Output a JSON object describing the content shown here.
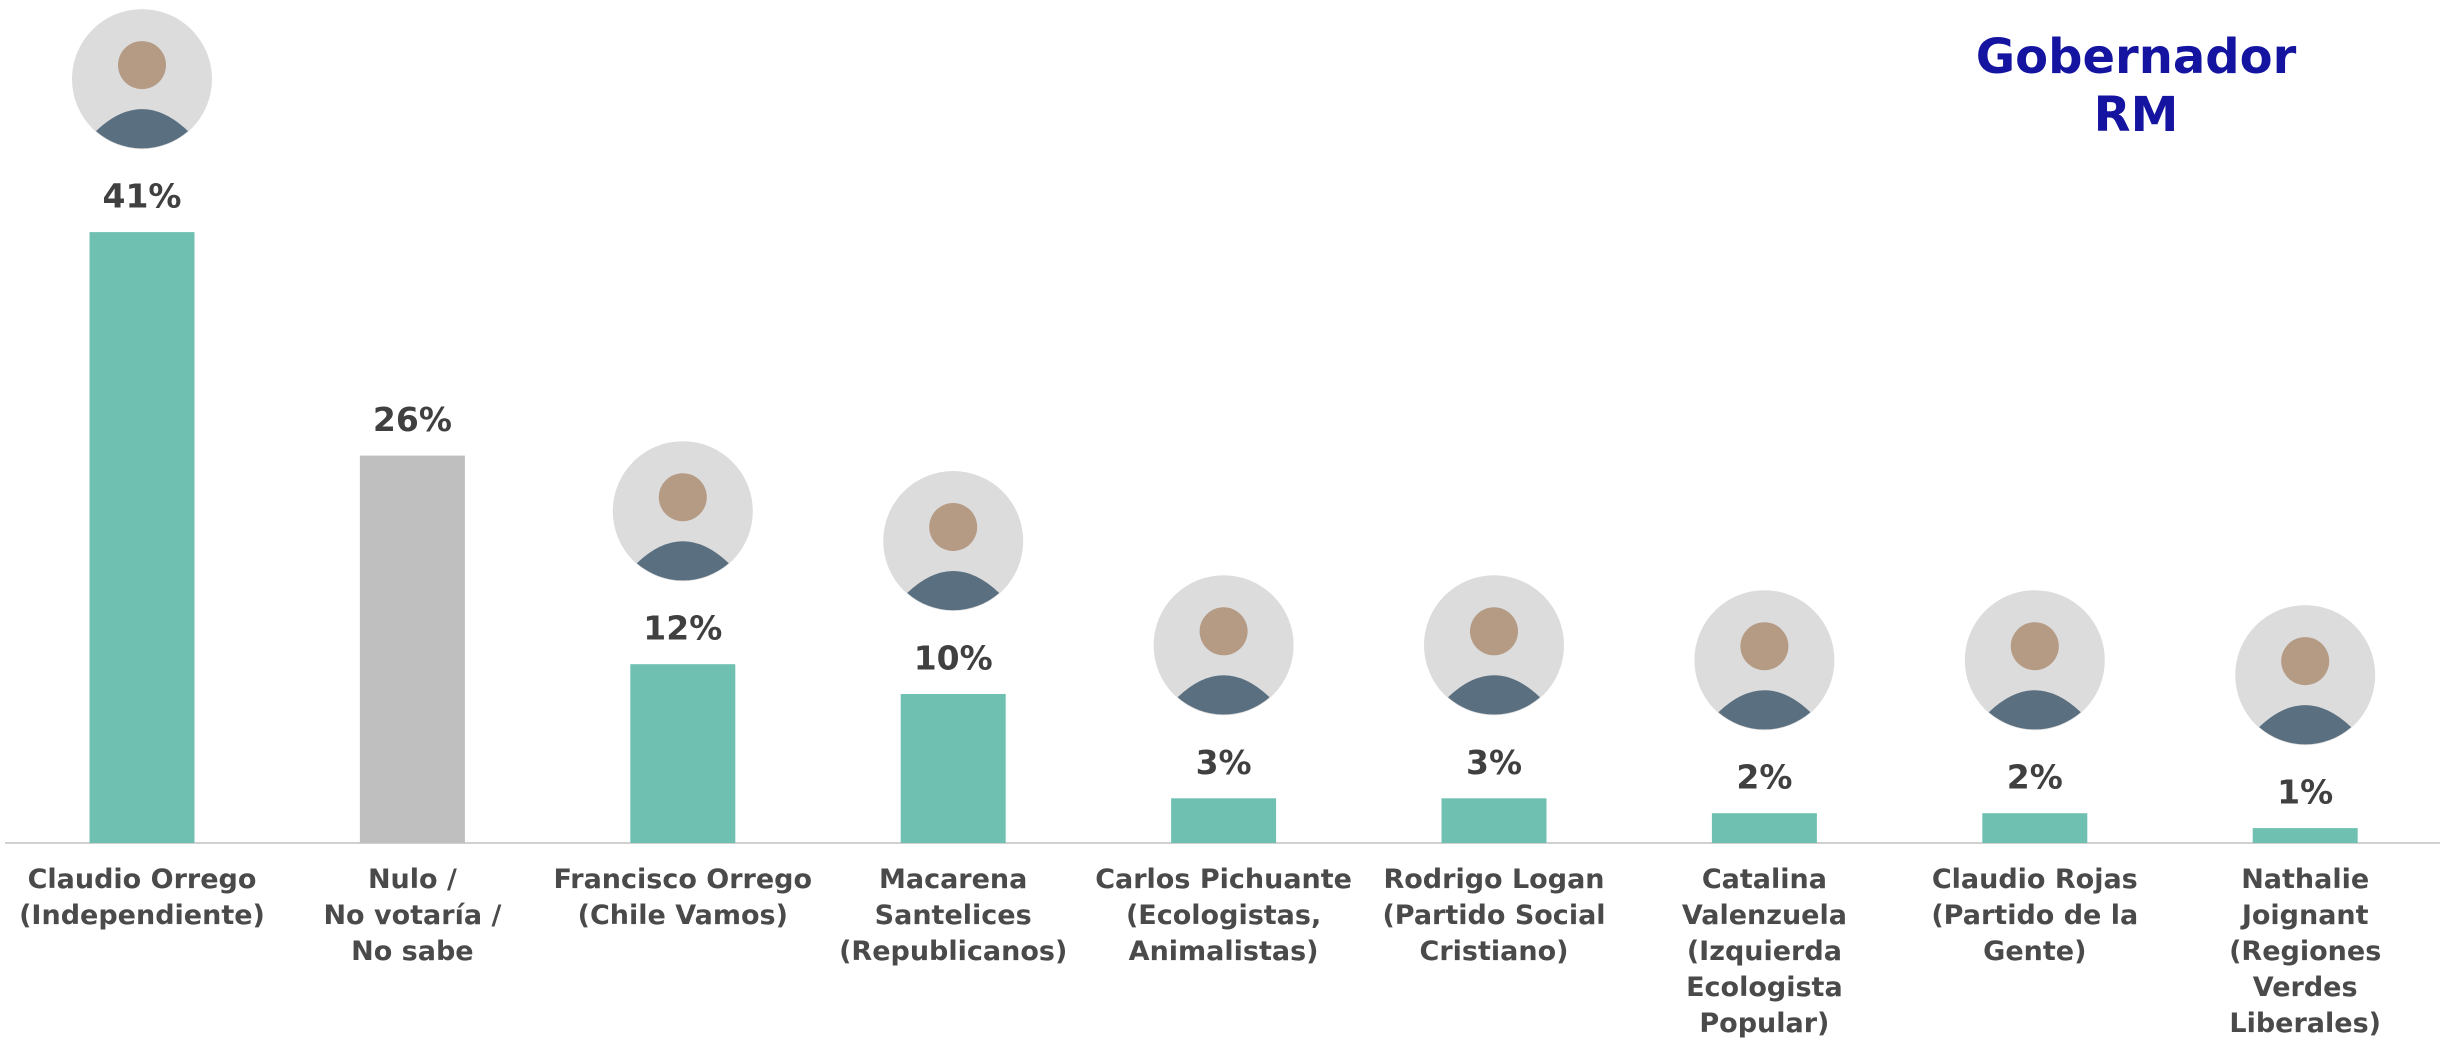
{
  "chart_data": {
    "type": "bar",
    "title": "Gobernador\nRM",
    "categories": [
      "Claudio Orrego\n(Independiente)",
      "Nulo /\nNo votaría /\nNo sabe",
      "Francisco Orrego\n(Chile Vamos)",
      "Macarena\nSantelices\n(Republicanos)",
      "Carlos Pichuante\n(Ecologistas,\nAnimalistas)",
      "Rodrigo Logan\n(Partido Social\nCristiano)",
      "Catalina\nValenzuela\n(Izquierda\nEcologista\nPopular)",
      "Claudio Rojas\n(Partido de la\nGente)",
      "Nathalie\nJoignant\n(Regiones Verdes\nLiberales)"
    ],
    "values": [
      41,
      26,
      12,
      10,
      3,
      3,
      2,
      2,
      1
    ],
    "value_labels": [
      "41%",
      "26%",
      "12%",
      "10%",
      "3%",
      "3%",
      "2%",
      "2%",
      "1%"
    ],
    "colors": [
      "#6fc0b1",
      "#bfbfbf",
      "#6fc0b1",
      "#6fc0b1",
      "#6fc0b1",
      "#6fc0b1",
      "#6fc0b1",
      "#6fc0b1",
      "#6fc0b1"
    ]
  }
}
